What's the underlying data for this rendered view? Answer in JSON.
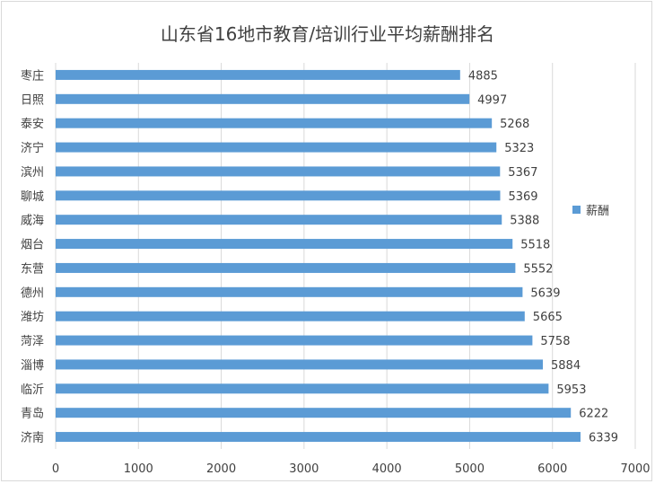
{
  "chart_data": {
    "type": "bar",
    "orientation": "horizontal",
    "title": "山东省16地市教育/培训行业平均薪酬排名",
    "categories": [
      "枣庄",
      "日照",
      "泰安",
      "济宁",
      "滨州",
      "聊城",
      "威海",
      "烟台",
      "东营",
      "德州",
      "潍坊",
      "菏泽",
      "淄博",
      "临沂",
      "青岛",
      "济南"
    ],
    "series": [
      {
        "name": "薪酬",
        "color": "#5b9bd5",
        "values": [
          4885,
          4997,
          5268,
          5323,
          5367,
          5369,
          5388,
          5518,
          5552,
          5639,
          5665,
          5758,
          5884,
          5953,
          6222,
          6339
        ]
      }
    ],
    "xlim": [
      0,
      7000
    ],
    "xticks": [
      0,
      1000,
      2000,
      3000,
      4000,
      5000,
      6000,
      7000
    ],
    "grid": "vertical",
    "legend": "right",
    "data_labels": true
  }
}
